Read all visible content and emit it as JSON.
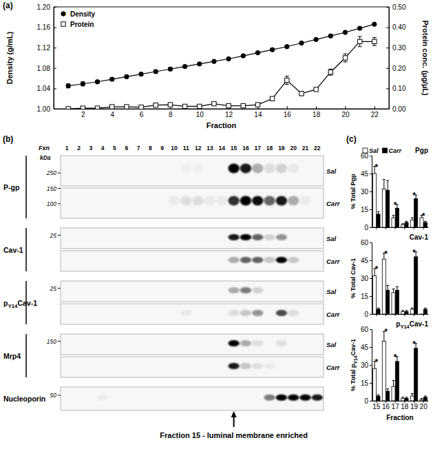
{
  "panel_labels": [
    "(a)",
    "(b)",
    "(c)"
  ],
  "chart_data": [
    {
      "type": "line",
      "x": [
        1,
        2,
        3,
        4,
        5,
        6,
        7,
        8,
        9,
        10,
        11,
        12,
        13,
        14,
        15,
        16,
        17,
        18,
        19,
        20,
        21,
        22
      ],
      "xlim": [
        0,
        23
      ],
      "xticks": [
        2,
        4,
        6,
        8,
        10,
        12,
        14,
        16,
        18,
        20,
        22
      ],
      "ylim": [
        1,
        1.2
      ],
      "yticks": [
        {
          "value": 1,
          "label": "1.00"
        },
        {
          "value": 1.04,
          "label": "1.04"
        },
        {
          "value": 1.08,
          "label": "1.08"
        },
        {
          "value": 1.12,
          "label": "1.12"
        },
        {
          "value": 1.16,
          "label": "1.16"
        },
        {
          "value": 1.2,
          "label": "1.20"
        }
      ],
      "y2lim": [
        0,
        0.5
      ],
      "y2ticks": [
        {
          "value": 0,
          "label": "0.00"
        },
        {
          "value": 0.1,
          "label": "0.10"
        },
        {
          "value": 0.2,
          "label": "0.20"
        },
        {
          "value": 0.3,
          "label": "0.30"
        },
        {
          "value": 0.4,
          "label": "0.40"
        },
        {
          "value": 0.5,
          "label": "0.50"
        }
      ],
      "x_label": "Fraction",
      "y_label": "Density (g/mL)",
      "y2_label": "Protein conc. (µg/µL)",
      "legend": "top-left",
      "series": [
        {
          "name": "Density",
          "color": "#000000",
          "marker": "circle",
          "values": [
            1.045,
            1.049,
            1.053,
            1.058,
            1.063,
            1.068,
            1.073,
            1.078,
            1.083,
            1.088,
            1.093,
            1.098,
            1.104,
            1.11,
            1.116,
            1.122,
            1.129,
            1.136,
            1.143,
            1.15,
            1.158,
            1.166
          ],
          "errors": [
            0.004,
            0.004,
            0.003,
            0.003,
            0.003,
            0.003,
            0.003,
            0.003,
            0.002,
            0.002,
            0.002,
            0.002,
            0.002,
            0.002,
            0.002,
            0.002,
            0.002,
            0.002,
            0.002,
            0.002,
            0.002,
            0.002
          ]
        },
        {
          "name": "Protein",
          "color": "#000000",
          "marker": "square",
          "axis": "y2",
          "values": [
            0,
            0.003,
            0.003,
            0.01,
            0.01,
            0.008,
            0.018,
            0.02,
            0.012,
            0.012,
            0.025,
            0.015,
            0.015,
            0.02,
            0.05,
            0.14,
            0.075,
            0.095,
            0.18,
            0.25,
            0.33,
            0.33
          ],
          "errors": [
            0.002,
            0.002,
            0.002,
            0.003,
            0.003,
            0.003,
            0.004,
            0.004,
            0.003,
            0.003,
            0.008,
            0.004,
            0.004,
            0.005,
            0.008,
            0.02,
            0.01,
            0.008,
            0.015,
            0.02,
            0.025,
            0.02
          ]
        }
      ]
    },
    {
      "type": "bar",
      "title": "Pgp",
      "y_label": "% Total Pgp",
      "categories": [
        "15",
        "16",
        "17",
        "18",
        "19",
        "20"
      ],
      "ylim": [
        0,
        60
      ],
      "yticks": [
        0,
        15,
        30,
        45,
        60
      ],
      "legend": "top",
      "tick_labels": "y",
      "series": [
        {
          "name": "Sal",
          "color": "#ffffff",
          "values": [
            45,
            32,
            8,
            2,
            6,
            8
          ],
          "errors": [
            6,
            8,
            2,
            1,
            2,
            2
          ]
        },
        {
          "name": "Carr",
          "color": "#000000",
          "values": [
            11,
            31,
            16,
            4,
            24,
            4
          ],
          "errors": [
            2,
            8,
            3,
            1,
            3,
            1
          ]
        }
      ],
      "annotations": [
        {
          "category": "15",
          "text": "*"
        },
        {
          "category": "17",
          "text": "*"
        },
        {
          "category": "19",
          "text": "*"
        },
        {
          "category": "20",
          "text": "*"
        }
      ]
    },
    {
      "type": "bar",
      "title": "Cav-1",
      "y_label": "% Total Cav-1",
      "categories": [
        "15",
        "16",
        "17",
        "18",
        "19",
        "20"
      ],
      "ylim": [
        0,
        60
      ],
      "yticks": [
        0,
        15,
        30,
        45,
        60
      ],
      "tick_labels": "y",
      "series": [
        {
          "color": "#ffffff",
          "values": [
            32,
            46,
            18,
            2,
            4,
            0
          ],
          "errors": [
            6,
            5,
            3,
            1,
            1,
            0
          ]
        },
        {
          "color": "#000000",
          "values": [
            4,
            20,
            20,
            2,
            48,
            4
          ],
          "errors": [
            1,
            4,
            3,
            1,
            4,
            1
          ]
        }
      ],
      "annotations": [
        {
          "category": "15",
          "text": "*"
        },
        {
          "category": "16",
          "text": "*"
        },
        {
          "category": "19",
          "text": "*"
        }
      ]
    },
    {
      "type": "bar",
      "title": "pY14Cav-1",
      "y_label": "% Total pY14Cav-1",
      "x_label": "Fraction",
      "categories": [
        "15",
        "16",
        "17",
        "18",
        "19",
        "20"
      ],
      "ylim": [
        0,
        60
      ],
      "yticks": [
        0,
        15,
        30,
        45,
        60
      ],
      "series": [
        {
          "color": "#ffffff",
          "values": [
            27,
            50,
            12,
            2,
            4,
            1
          ],
          "errors": [
            6,
            8,
            5,
            1,
            2,
            1
          ]
        },
        {
          "color": "#000000",
          "values": [
            4,
            8,
            33,
            2,
            44,
            3
          ],
          "errors": [
            1,
            2,
            4,
            1,
            4,
            1
          ]
        }
      ],
      "annotations": [
        {
          "category": "15",
          "text": "*"
        },
        {
          "category": "16",
          "text": "*"
        },
        {
          "category": "17",
          "text": "*"
        },
        {
          "category": "19",
          "text": "*"
        }
      ]
    }
  ],
  "blot_panel": {
    "header": "Fxn",
    "lanes": [
      1,
      2,
      3,
      4,
      5,
      6,
      7,
      8,
      9,
      10,
      11,
      12,
      13,
      14,
      15,
      16,
      17,
      18,
      19,
      20,
      21,
      22
    ],
    "unit_label": "kDa",
    "callout": "Fraction 15 - luminal membrane enriched",
    "callout_lane": 15,
    "blots": [
      {
        "label": "P-gp",
        "markers": [
          250,
          150,
          100
        ],
        "rows": [
          {
            "condition": "Sal",
            "intensity": [
              0,
              0,
              0,
              0,
              0,
              0,
              0,
              0,
              0,
              0,
              0.03,
              0.03,
              0,
              0,
              1,
              0.9,
              0.3,
              0.1,
              0.15,
              0.05,
              0,
              0
            ]
          },
          {
            "condition": "Carr",
            "intensity": [
              0,
              0,
              0,
              0,
              0,
              0,
              0,
              0,
              0,
              0.05,
              0.1,
              0.1,
              0.05,
              0.05,
              0.8,
              1,
              0.95,
              0.6,
              0.9,
              0.3,
              0.05,
              0
            ]
          }
        ]
      },
      {
        "label": "Cav-1",
        "markers": [
          25
        ],
        "rows": [
          {
            "condition": "Sal",
            "intensity": [
              0,
              0,
              0,
              0,
              0,
              0,
              0,
              0,
              0,
              0,
              0,
              0,
              0,
              0,
              0.9,
              1,
              0.6,
              0.15,
              0.4,
              0,
              0,
              0
            ]
          },
          {
            "condition": "Carr",
            "intensity": [
              0,
              0,
              0,
              0,
              0,
              0,
              0,
              0,
              0,
              0,
              0,
              0,
              0,
              0,
              0.3,
              0.6,
              0.6,
              0.2,
              1,
              0.2,
              0,
              0
            ]
          }
        ]
      },
      {
        "label": "pY14Cav-1",
        "markers": [
          25
        ],
        "rows": [
          {
            "condition": "Sal",
            "intensity": [
              0,
              0,
              0,
              0,
              0,
              0,
              0,
              0,
              0,
              0,
              0,
              0,
              0,
              0,
              0.3,
              0.5,
              0.15,
              0,
              0,
              0,
              0,
              0
            ]
          },
          {
            "condition": "Carr",
            "intensity": [
              0,
              0,
              0,
              0,
              0,
              0,
              0,
              0,
              0,
              0,
              0.05,
              0,
              0,
              0,
              0.1,
              0.2,
              0.4,
              0,
              0.7,
              0.1,
              0,
              0
            ]
          }
        ]
      },
      {
        "label": "Mrp4",
        "markers": [
          150
        ],
        "rows": [
          {
            "condition": "Sal",
            "intensity": [
              0,
              0,
              0,
              0,
              0,
              0,
              0,
              0,
              0,
              0,
              0,
              0,
              0,
              0,
              1,
              0.3,
              0.1,
              0,
              0.1,
              0,
              0,
              0
            ]
          },
          {
            "condition": "Carr",
            "intensity": [
              0,
              0,
              0,
              0,
              0,
              0,
              0,
              0,
              0,
              0,
              0,
              0,
              0,
              0,
              0.9,
              0.2,
              0.1,
              0.05,
              0,
              0,
              0,
              0
            ]
          }
        ]
      },
      {
        "label": "Nucleoporin",
        "markers": [
          50
        ],
        "rows": [
          {
            "intensity": [
              0,
              0,
              0,
              0.05,
              0,
              0,
              0,
              0,
              0,
              0,
              0,
              0,
              0,
              0,
              0,
              0,
              0,
              0.5,
              1,
              1,
              1,
              0.9
            ]
          }
        ]
      }
    ]
  }
}
